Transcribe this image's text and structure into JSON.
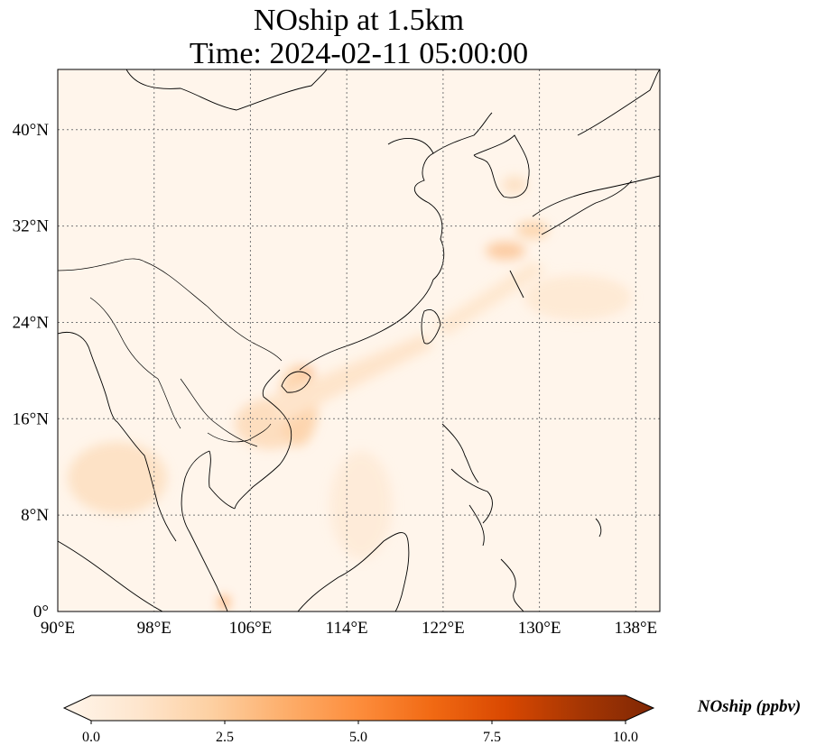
{
  "title": {
    "line1": "NOship at 1.5km",
    "line2": "Time: 2024-02-11 05:00:00"
  },
  "map": {
    "projection": "PlateCarree",
    "lon_range": [
      90,
      140
    ],
    "lat_range": [
      0,
      45
    ],
    "gridlines": "dotted",
    "lon_ticks": [
      {
        "value": 90,
        "label": "90°E"
      },
      {
        "value": 98,
        "label": "98°E"
      },
      {
        "value": 106,
        "label": "106°E"
      },
      {
        "value": 114,
        "label": "114°E"
      },
      {
        "value": 122,
        "label": "122°E"
      },
      {
        "value": 130,
        "label": "130°E"
      },
      {
        "value": 138,
        "label": "138°E"
      }
    ],
    "lat_ticks": [
      {
        "value": 0,
        "label": "0°"
      },
      {
        "value": 8,
        "label": "8°N"
      },
      {
        "value": 16,
        "label": "16°N"
      },
      {
        "value": 24,
        "label": "24°N"
      },
      {
        "value": 32,
        "label": "32°N"
      },
      {
        "value": 40,
        "label": "40°N"
      }
    ],
    "background_color": "#fff5eb"
  },
  "colorbar": {
    "label": "NOship (ppbv)",
    "colormap": "OrRd",
    "range": [
      0,
      10
    ],
    "extend": "both",
    "ticks": [
      {
        "value": 0,
        "label": "0.0"
      },
      {
        "value": 2.5,
        "label": "2.5"
      },
      {
        "value": 5,
        "label": "5.0"
      },
      {
        "value": 7.5,
        "label": "7.5"
      },
      {
        "value": 10,
        "label": "10.0"
      }
    ],
    "stops": [
      "#fff5eb",
      "#fee6ce",
      "#fdd0a2",
      "#fdae6b",
      "#fd8d3c",
      "#f16913",
      "#d94801",
      "#a63603",
      "#7f2704"
    ]
  }
}
